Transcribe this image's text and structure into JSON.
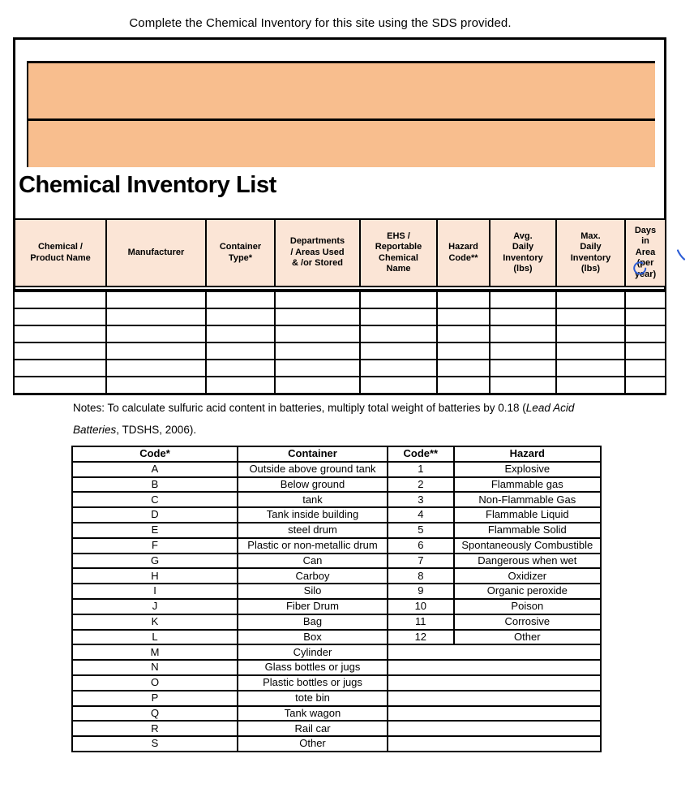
{
  "page": {
    "instruction": "Complete the Chemical Inventory for this site using the SDS provided.",
    "title": "Chemical Inventory List"
  },
  "inventory_table": {
    "columns": [
      "Chemical /\nProduct Name",
      "Manufacturer",
      "Container\nType*",
      "Departments\n/ Areas Used\n& /or Stored",
      "EHS /\nReportable\nChemical\nName",
      "Hazard\nCode**",
      "Avg.\nDaily\nInventory\n(lbs)",
      "Max.\nDaily\nInventory\n(lbs)",
      "Days\nin\nArea\n(per\nyear)"
    ],
    "rows": [
      [
        "",
        "",
        "",
        "",
        "",
        "",
        "",
        "",
        ""
      ],
      [
        "",
        "",
        "",
        "",
        "",
        "",
        "",
        "",
        ""
      ],
      [
        "",
        "",
        "",
        "",
        "",
        "",
        "",
        "",
        ""
      ],
      [
        "",
        "",
        "",
        "",
        "",
        "",
        "",
        "",
        ""
      ],
      [
        "",
        "",
        "",
        "",
        "",
        "",
        "",
        "",
        ""
      ],
      [
        "",
        "",
        "",
        "",
        "",
        "",
        "",
        "",
        ""
      ]
    ]
  },
  "notes": {
    "line1_regular": "Notes: To calculate sulfuric acid content in batteries, multiply total weight of batteries by 0.18 (",
    "line1_italic": "Lead Acid",
    "line2_italic": "Batteries",
    "line2_regular": ", TDSHS, 2006)."
  },
  "codes_table": {
    "headers": [
      "Code*",
      "Container",
      "Code**",
      "Hazard"
    ],
    "container_codes": [
      {
        "code": "A",
        "container": "Outside above ground tank"
      },
      {
        "code": "B",
        "container": "Below ground"
      },
      {
        "code": "C",
        "container": "tank"
      },
      {
        "code": "D",
        "container": "Tank inside building"
      },
      {
        "code": "E",
        "container": "steel drum"
      },
      {
        "code": "F",
        "container": "Plastic or non-metallic drum"
      },
      {
        "code": "G",
        "container": "Can"
      },
      {
        "code": "H",
        "container": "Carboy"
      },
      {
        "code": "I",
        "container": "Silo"
      },
      {
        "code": "J",
        "container": "Fiber Drum"
      },
      {
        "code": "K",
        "container": "Bag"
      },
      {
        "code": "L",
        "container": "Box"
      },
      {
        "code": "M",
        "container": "Cylinder"
      },
      {
        "code": "N",
        "container": "Glass bottles or jugs"
      },
      {
        "code": "O",
        "container": "Plastic bottles or jugs"
      },
      {
        "code": "P",
        "container": "tote bin"
      },
      {
        "code": "Q",
        "container": "Tank wagon"
      },
      {
        "code": "R",
        "container": "Rail car"
      },
      {
        "code": "S",
        "container": "Other"
      }
    ],
    "hazard_codes": [
      {
        "code": "1",
        "hazard": "Explosive"
      },
      {
        "code": "2",
        "hazard": "Flammable gas"
      },
      {
        "code": "3",
        "hazard": "Non-Flammable Gas"
      },
      {
        "code": "4",
        "hazard": "Flammable Liquid"
      },
      {
        "code": "5",
        "hazard": "Flammable Solid"
      },
      {
        "code": "6",
        "hazard": "Spontaneously Combustible"
      },
      {
        "code": "7",
        "hazard": "Dangerous when wet"
      },
      {
        "code": "8",
        "hazard": "Oxidizer"
      },
      {
        "code": "9",
        "hazard": "Organic peroxide"
      },
      {
        "code": "10",
        "hazard": "Poison"
      },
      {
        "code": "11",
        "hazard": "Corrosive"
      },
      {
        "code": "12",
        "hazard": "Other"
      }
    ]
  },
  "annotations": {
    "marks": [
      "blue-circle-over-per-year",
      "blue-check-mark-right-of-table"
    ]
  },
  "colors": {
    "accent_orange": "#F8BE8E",
    "header_peach": "#FBE5D6",
    "annotation_blue": "#2E5ED6",
    "border_black": "#000000"
  }
}
